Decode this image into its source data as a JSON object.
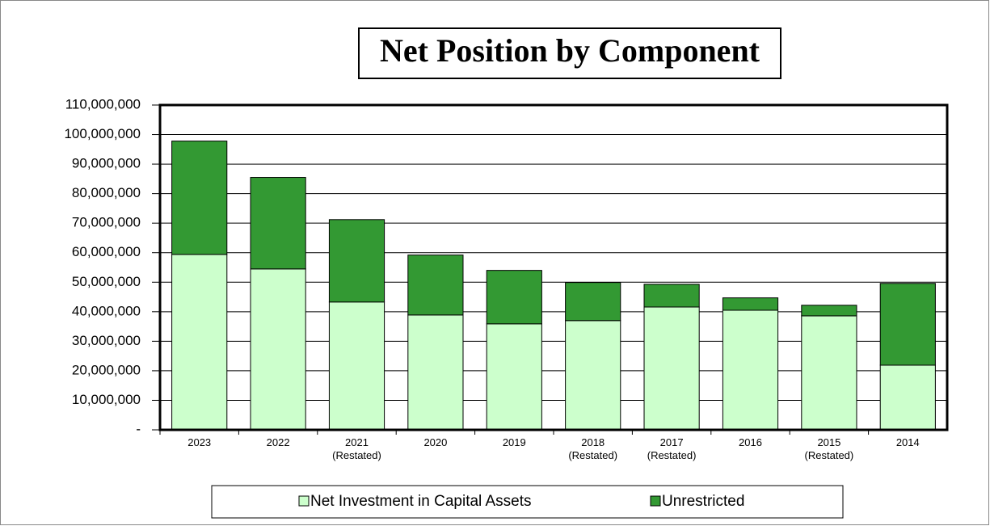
{
  "chart_data": {
    "type": "stacked_bar",
    "title": "Net Position by Component",
    "categories": [
      "2023",
      "2022",
      "2021\n(Restated)",
      "2020",
      "2019",
      "2018\n(Restated)",
      "2017\n(Restated)",
      "2016",
      "2015\n(Restated)",
      "2014"
    ],
    "series": [
      {
        "name": "Net Investment in Capital Assets",
        "color": "#ccffcc",
        "values": [
          59400000,
          54500000,
          43300000,
          38900000,
          35900000,
          37000000,
          41600000,
          40500000,
          38600000,
          21900000
        ]
      },
      {
        "name": "Unrestricted",
        "color": "#339933",
        "values": [
          38400000,
          31000000,
          27900000,
          20300000,
          18100000,
          12900000,
          7700000,
          4200000,
          3600000,
          27700000
        ]
      }
    ],
    "ylim": [
      0,
      110000000
    ],
    "yticks": [
      {
        "value": 0,
        "label": "-"
      },
      {
        "value": 10000000,
        "label": "10,000,000"
      },
      {
        "value": 20000000,
        "label": "20,000,000"
      },
      {
        "value": 30000000,
        "label": "30,000,000"
      },
      {
        "value": 40000000,
        "label": "40,000,000"
      },
      {
        "value": 50000000,
        "label": "50,000,000"
      },
      {
        "value": 60000000,
        "label": "60,000,000"
      },
      {
        "value": 70000000,
        "label": "70,000,000"
      },
      {
        "value": 80000000,
        "label": "80,000,000"
      },
      {
        "value": 90000000,
        "label": "90,000,000"
      },
      {
        "value": 100000000,
        "label": "100,000,000"
      },
      {
        "value": 110000000,
        "label": "110,000,000"
      }
    ],
    "grid": true,
    "legend": "bottom"
  }
}
